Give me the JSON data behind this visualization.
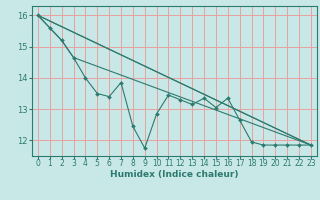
{
  "xlabel": "Humidex (Indice chaleur)",
  "bg_color": "#c8e8e8",
  "line_color": "#2d7a6e",
  "grid_color": "#e8a0a0",
  "xlim": [
    -0.5,
    23.5
  ],
  "ylim": [
    11.5,
    16.3
  ],
  "yticks": [
    12,
    13,
    14,
    15,
    16
  ],
  "xticks": [
    0,
    1,
    2,
    3,
    4,
    5,
    6,
    7,
    8,
    9,
    10,
    11,
    12,
    13,
    14,
    15,
    16,
    17,
    18,
    19,
    20,
    21,
    22,
    23
  ],
  "lines": [
    {
      "x": [
        0,
        1,
        2,
        3,
        4,
        5,
        6,
        7,
        8,
        9,
        10,
        11,
        12,
        13,
        14,
        15,
        16,
        17,
        18,
        19,
        20,
        21,
        22,
        23
      ],
      "y": [
        16.0,
        15.6,
        15.2,
        14.65,
        14.0,
        13.5,
        13.4,
        13.85,
        12.45,
        11.75,
        12.85,
        13.45,
        13.3,
        13.15,
        13.35,
        13.05,
        13.35,
        12.65,
        11.95,
        11.85,
        11.85,
        11.85,
        11.85,
        11.85
      ],
      "marker": true
    },
    {
      "x": [
        0,
        23
      ],
      "y": [
        16.0,
        11.85
      ],
      "marker": false
    },
    {
      "x": [
        0,
        23
      ],
      "y": [
        16.0,
        11.85
      ],
      "marker": false
    },
    {
      "x": [
        0,
        2,
        3,
        23
      ],
      "y": [
        16.0,
        15.2,
        14.65,
        11.85
      ],
      "marker": false
    }
  ],
  "xlabel_fontsize": 6.5,
  "xlabel_bold": true,
  "tick_fontsize": 5.5,
  "ytick_fontsize": 6
}
